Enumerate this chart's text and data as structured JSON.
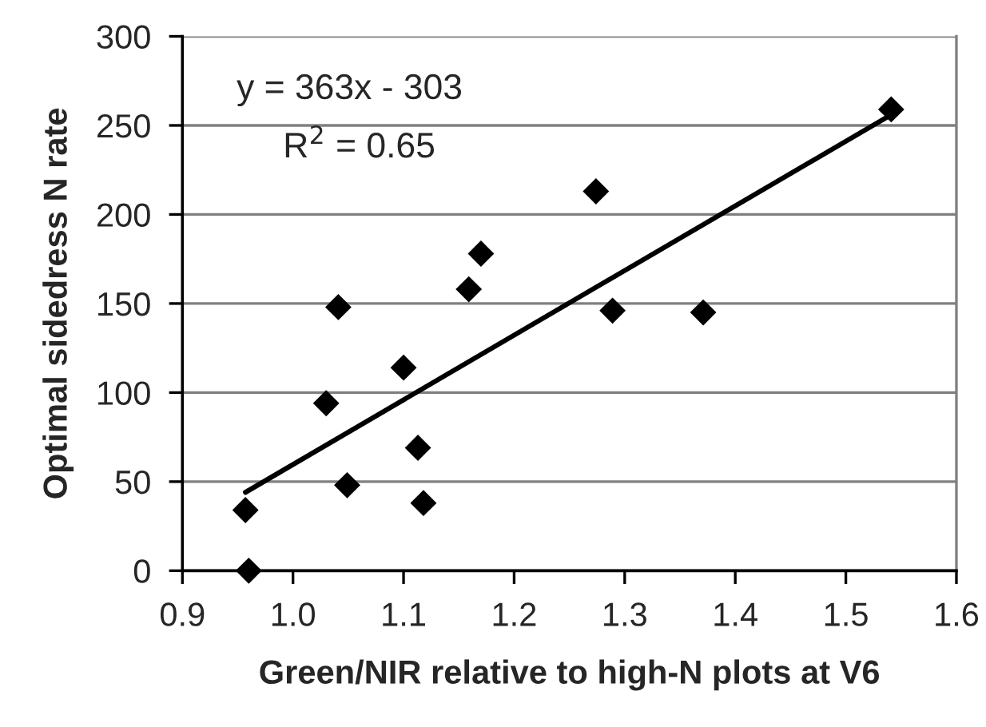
{
  "chart_data": {
    "type": "scatter",
    "xlabel": "Green/NIR relative to high-N plots at V6",
    "ylabel": "Optimal sidedress N rate",
    "xlim": [
      0.9,
      1.6
    ],
    "xticks": [
      {
        "value": 0.9,
        "label": "0.9"
      },
      {
        "value": 1.0,
        "label": "1.0"
      },
      {
        "value": 1.1,
        "label": "1.1"
      },
      {
        "value": 1.2,
        "label": "1.2"
      },
      {
        "value": 1.3,
        "label": "1.3"
      },
      {
        "value": 1.4,
        "label": "1.4"
      },
      {
        "value": 1.5,
        "label": "1.5"
      },
      {
        "value": 1.6,
        "label": "1.6"
      }
    ],
    "ylim": [
      0,
      300
    ],
    "yticks": [
      0,
      50,
      100,
      150,
      200,
      250,
      300
    ],
    "grid": "y",
    "annotations": [
      "y = 363x - 303",
      "R$^{2}$ = 0.65"
    ],
    "series": [
      {
        "marker": "diamond",
        "color": "#000000",
        "x": [
          0.957,
          0.96,
          1.03,
          1.041,
          1.049,
          1.1,
          1.113,
          1.118,
          1.159,
          1.17,
          1.274,
          1.289,
          1.371,
          1.541
        ],
        "values": [
          34,
          0,
          94,
          148,
          48,
          114,
          69,
          38,
          158,
          178,
          213,
          146,
          145,
          259
        ]
      },
      {
        "type": "line",
        "marker": "none",
        "color": "#000000",
        "x": [
          0.957,
          1.541
        ],
        "values": [
          44,
          256
        ]
      }
    ]
  }
}
